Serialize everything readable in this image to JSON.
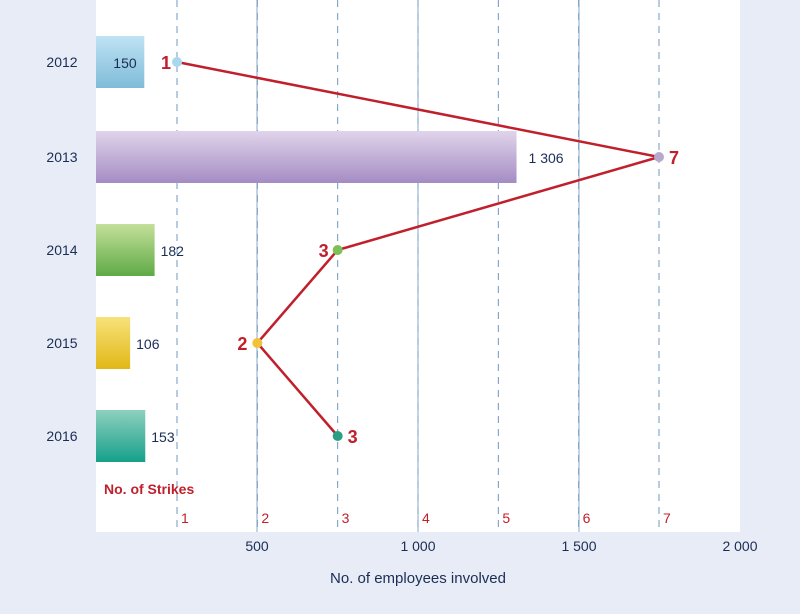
{
  "chart_data": {
    "type": "bar+line",
    "categories": [
      "2012",
      "2013",
      "2014",
      "2015",
      "2016"
    ],
    "employees": {
      "name": "No. of employees involved",
      "values": [
        150,
        1306,
        182,
        106,
        153
      ],
      "labels": [
        "150",
        "1 306",
        "182",
        "106",
        "153"
      ],
      "colors": [
        [
          "#bfe3f4",
          "#7fbbd8"
        ],
        [
          "#e0d4ea",
          "#a48cc4"
        ],
        [
          "#c4e09a",
          "#5faa46"
        ],
        [
          "#f7e27a",
          "#e2b817"
        ],
        [
          "#8ed0bf",
          "#15a08a"
        ]
      ]
    },
    "strikes": {
      "name": "No. of Strikes",
      "values": [
        1,
        7,
        3,
        2,
        3
      ],
      "labels": [
        "1",
        "7",
        "3",
        "2",
        "3"
      ],
      "line_color": "#c0202c",
      "marker_colors": [
        "#a9d8ee",
        "#b8a8d0",
        "#7cc05a",
        "#f0c23a",
        "#2a9f86"
      ]
    },
    "x_axis_employees": {
      "title": "No. of employees involved",
      "range": [
        0,
        2000
      ],
      "ticks": [
        500,
        1000,
        1500,
        2000
      ],
      "tick_labels": [
        "500",
        "1 000",
        "1 500",
        "2 000"
      ]
    },
    "x_axis_strikes": {
      "title": "No. of Strikes",
      "range": [
        0,
        8
      ],
      "ticks": [
        1,
        2,
        3,
        4,
        5,
        6,
        7
      ],
      "tick_labels": [
        "1",
        "2",
        "3",
        "4",
        "5",
        "6",
        "7"
      ]
    },
    "colors": {
      "background": "#e8ecf6",
      "plot_background": "#ffffff",
      "gridline_solid": "#8aa8c8",
      "gridline_dashed": "#6f98bc",
      "text": "#1a2e55",
      "strike_label": "#c0202c"
    }
  }
}
